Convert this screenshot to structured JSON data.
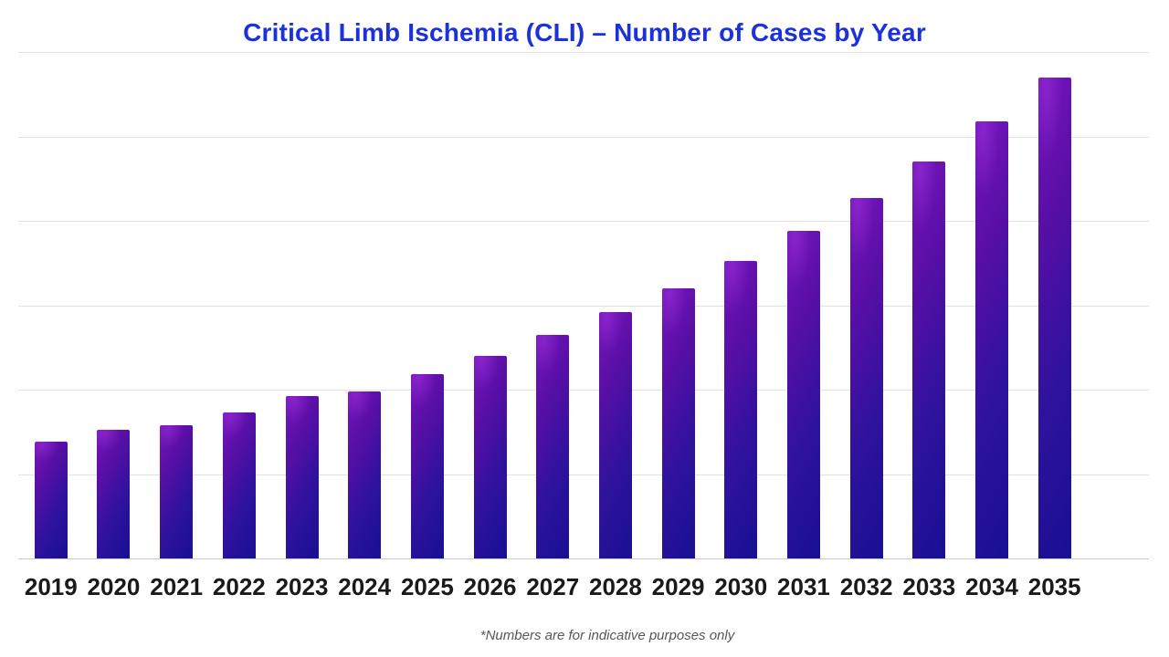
{
  "chart_data": {
    "type": "bar",
    "title": "Critical Limb Ischemia (CLI) – Number of Cases by Year",
    "footnote": "*Numbers are for indicative purposes only",
    "xlabel": "",
    "ylabel": "",
    "categories": [
      "2019",
      "2020",
      "2021",
      "2022",
      "2023",
      "2024",
      "2025",
      "2026",
      "2027",
      "2028",
      "2029",
      "2030",
      "2031",
      "2032",
      "2033",
      "2034",
      "2035"
    ],
    "values": [
      1.38,
      1.52,
      1.58,
      1.73,
      1.92,
      1.98,
      2.18,
      2.4,
      2.65,
      2.92,
      3.2,
      3.53,
      3.88,
      4.27,
      4.7,
      5.18,
      5.7
    ],
    "values_note": "relative units estimated from gridlines; y-axis has no visible tick labels (1 unit = 1 gridline interval)",
    "ylim": [
      0,
      6
    ],
    "grid": true,
    "gridline_count": 7,
    "legend": "none",
    "colors": {
      "title": "#1b31db",
      "bar_gradient_start": "#7714bd",
      "bar_gradient_end": "#181093",
      "bar_highlight": "#9e34dd",
      "gridline": "#e2e2e2",
      "baseline": "#c9c9c9",
      "x_label": "#1a1a1a",
      "footnote": "#575757",
      "background": "#ffffff"
    }
  }
}
